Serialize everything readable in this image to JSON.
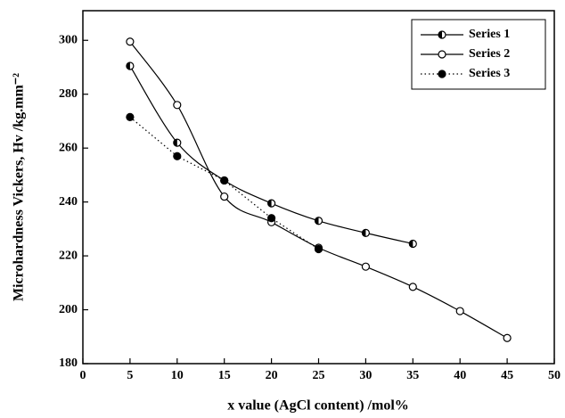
{
  "chart_data": {
    "type": "line",
    "xlabel": "x value (AgCl content) /mol%",
    "ylabel": "Microhardness Vickers, Hv /kg.mm⁻²",
    "xlim": [
      0,
      50
    ],
    "xticks": [
      0,
      5,
      10,
      15,
      20,
      25,
      30,
      35,
      40,
      45,
      50
    ],
    "ylim": [
      180,
      311
    ],
    "yticks": [
      180,
      200,
      220,
      240,
      260,
      280,
      300
    ],
    "legend": "upper right",
    "series": [
      {
        "name": "Series 1",
        "color": "#000000",
        "marker": "half",
        "dash": "solid",
        "x": [
          5,
          10,
          15,
          20,
          25,
          30,
          35
        ],
        "values": [
          290.5,
          262,
          248,
          239.5,
          233,
          228.5,
          224.5
        ]
      },
      {
        "name": "Series 2",
        "color": "#000000",
        "marker": "open",
        "dash": "solid",
        "x": [
          5,
          10,
          15,
          20,
          25,
          30,
          35,
          40,
          45
        ],
        "values": [
          299.5,
          276,
          242,
          232.5,
          223,
          216,
          208.5,
          199.5,
          189.5
        ]
      },
      {
        "name": "Series 3",
        "color": "#000000",
        "marker": "filled",
        "dash": "dotted",
        "x": [
          5,
          10,
          15,
          20,
          25
        ],
        "values": [
          271.5,
          257,
          248,
          234,
          222.5
        ]
      }
    ]
  }
}
